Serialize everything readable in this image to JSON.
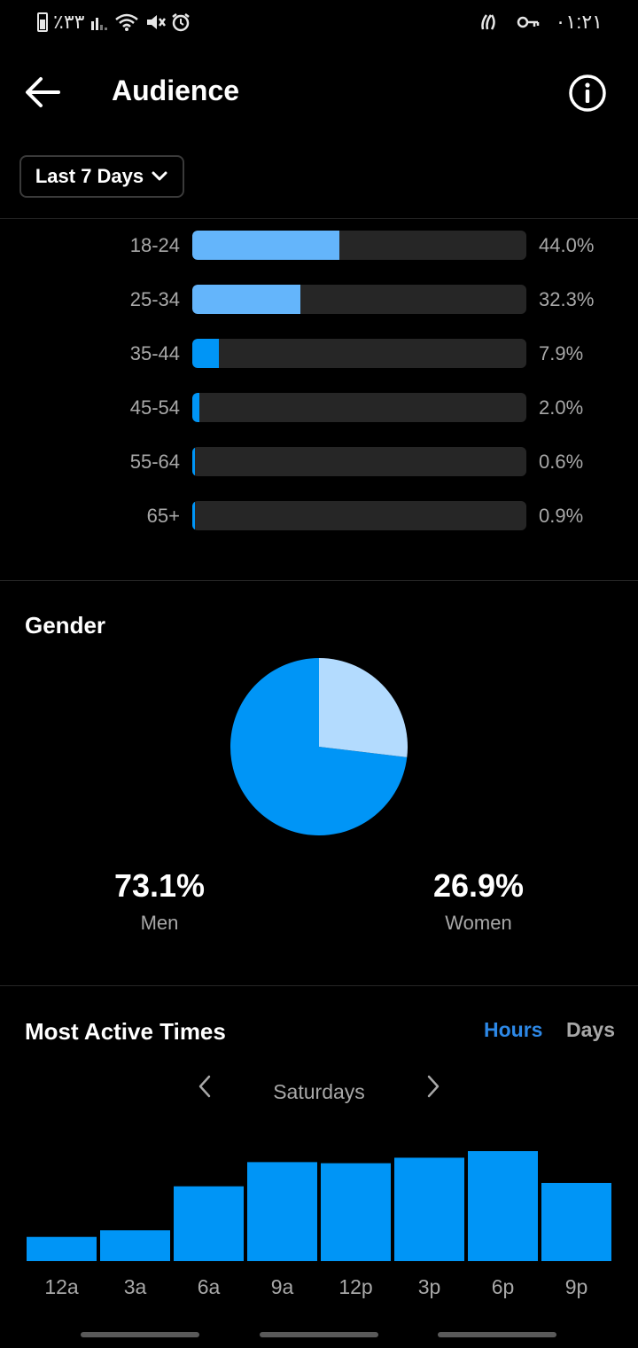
{
  "status_bar": {
    "battery": "٪٣٣",
    "time": "٠١:٢١"
  },
  "header": {
    "title": "Audience"
  },
  "date_range": {
    "label": "Last 7 Days"
  },
  "age": {
    "rows": [
      {
        "label": "18-24",
        "value_text": "44.0%",
        "fraction": 0.44,
        "color": "#64b5fb"
      },
      {
        "label": "25-34",
        "value_text": "32.3%",
        "fraction": 0.323,
        "color": "#64b5fb"
      },
      {
        "label": "35-44",
        "value_text": "7.9%",
        "fraction": 0.079,
        "color": "#0095f6"
      },
      {
        "label": "45-54",
        "value_text": "2.0%",
        "fraction": 0.02,
        "color": "#0095f6"
      },
      {
        "label": "55-64",
        "value_text": "0.6%",
        "fraction": 0.006,
        "color": "#0095f6"
      },
      {
        "label": "65+",
        "value_text": "0.9%",
        "fraction": 0.009,
        "color": "#0095f6"
      }
    ]
  },
  "gender": {
    "title": "Gender",
    "men": {
      "pct_text": "73.1%",
      "label": "Men",
      "value": 73.1,
      "color": "#0095f6"
    },
    "women": {
      "pct_text": "26.9%",
      "label": "Women",
      "value": 26.9,
      "color": "#b3dbfe"
    }
  },
  "active_times": {
    "title": "Most Active Times",
    "toggle_hours": "Hours",
    "toggle_days": "Days",
    "selected_day": "Saturdays",
    "active_color": "#2d88e6",
    "inactive_color": "#a8a8a8"
  },
  "chart_data": {
    "type": "bar",
    "categories": [
      "12a",
      "3a",
      "6a",
      "9a",
      "12p",
      "3p",
      "6p",
      "9p"
    ],
    "values": [
      22,
      28,
      68,
      90,
      89,
      94,
      100,
      71
    ],
    "ylim": [
      0,
      100
    ],
    "grid": false,
    "color": "#0095f6"
  }
}
